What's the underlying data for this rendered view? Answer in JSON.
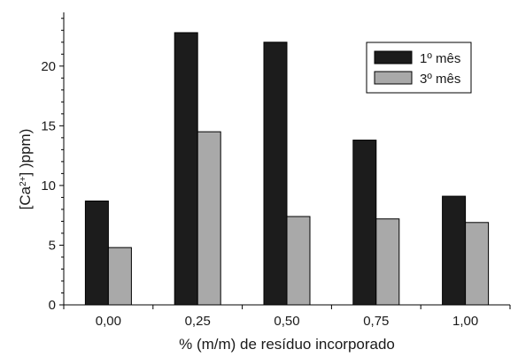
{
  "chart_data": {
    "type": "bar",
    "title": "",
    "xlabel": "% (m/m) de resíduo incorporado",
    "ylabel_base": "[Ca",
    "ylabel_sup": "2+",
    "ylabel_rest": "] )ppm)",
    "categories": [
      "0,00",
      "0,25",
      "0,50",
      "0,75",
      "1,00"
    ],
    "series": [
      {
        "name": "1º mês",
        "values": [
          8.7,
          22.8,
          22.0,
          13.8,
          9.1
        ],
        "color": "#1c1c1c"
      },
      {
        "name": "3º mês",
        "values": [
          4.8,
          14.5,
          7.4,
          7.2,
          6.9
        ],
        "color": "#a9a9a9"
      }
    ],
    "ylim": [
      0,
      24.5
    ],
    "yticks": [
      0,
      5,
      10,
      15,
      20
    ],
    "ytick_labels": [
      "0",
      "5",
      "10",
      "15",
      "20"
    ],
    "y_minor_step": 1,
    "grid": false,
    "legend_position": "top-right"
  }
}
